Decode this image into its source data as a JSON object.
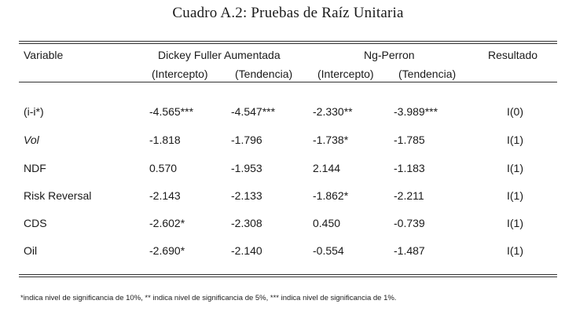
{
  "caption": "Cuadro A.2: Pruebas de Raíz Unitaria",
  "header": {
    "variable": "Variable",
    "dfa": "Dickey Fuller Aumentada",
    "ngp": "Ng-Perron",
    "result": "Resultado",
    "dfa_int": "(Intercepto)",
    "dfa_trend": "(Tendencia)",
    "ngp_int": "(Intercepto)",
    "ngp_trend": "(Tendencia)"
  },
  "rows": [
    {
      "variable": "(i-i*)",
      "dfa_int": "-4.565***",
      "dfa_trend": "-4.547***",
      "ngp_int": "-2.330**",
      "ngp_trend": "-3.989***",
      "result": "I(0)"
    },
    {
      "variable": "Vol",
      "dfa_int": "-1.818",
      "dfa_trend": "-1.796",
      "ngp_int": "-1.738*",
      "ngp_trend": "-1.785",
      "result": "I(1)"
    },
    {
      "variable": "NDF",
      "dfa_int": "0.570",
      "dfa_trend": "-1.953",
      "ngp_int": "2.144",
      "ngp_trend": "-1.183",
      "result": "I(1)"
    },
    {
      "variable": "Risk Reversal",
      "dfa_int": "-2.143",
      "dfa_trend": "-2.133",
      "ngp_int": "-1.862*",
      "ngp_trend": "-2.211",
      "result": "I(1)"
    },
    {
      "variable": "CDS",
      "dfa_int": "-2.602*",
      "dfa_trend": "-2.308",
      "ngp_int": "0.450",
      "ngp_trend": "-0.739",
      "result": "I(1)"
    },
    {
      "variable": "Oil",
      "dfa_int": "-2.690*",
      "dfa_trend": "-2.140",
      "ngp_int": "-0.554",
      "ngp_trend": "-1.487",
      "result": "I(1)"
    }
  ],
  "note": "*indica nivel de significancia de 10%, ** indica nivel de significancia de 5%, *** indica nivel de significancia de 1%."
}
